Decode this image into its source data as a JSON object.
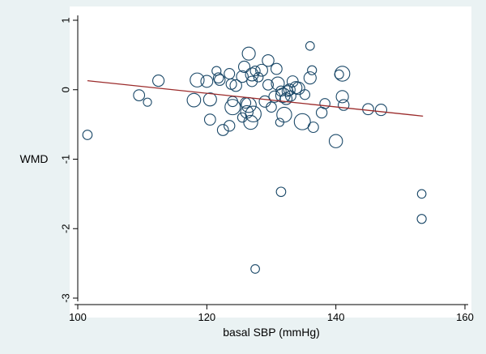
{
  "chart_data": {
    "type": "scatter",
    "title": "",
    "xlabel": "basal SBP (mmHg)",
    "ylabel": "WMD",
    "xlim": [
      100,
      160
    ],
    "ylim": [
      -3,
      1
    ],
    "x_ticks": [
      100,
      120,
      140,
      160
    ],
    "y_ticks": [
      1,
      0,
      -1,
      -2,
      -3
    ],
    "grid": false,
    "legend": "none",
    "colors": {
      "background": "#eaf2f3",
      "plot_area": "#ffffff",
      "marker_stroke": "#1a4868",
      "fit_line": "#9b2b2b"
    },
    "fit_line": {
      "x": [
        101.5,
        153.5
      ],
      "y": [
        0.13,
        -0.38
      ]
    },
    "points": [
      {
        "x": 101.5,
        "y": -0.65,
        "w": 1.0
      },
      {
        "x": 109.5,
        "y": -0.08,
        "w": 1.5
      },
      {
        "x": 110.8,
        "y": -0.18,
        "w": 0.7
      },
      {
        "x": 112.5,
        "y": 0.13,
        "w": 1.6
      },
      {
        "x": 118.0,
        "y": -0.15,
        "w": 2.4
      },
      {
        "x": 118.5,
        "y": 0.14,
        "w": 2.6
      },
      {
        "x": 120.0,
        "y": 0.12,
        "w": 1.8
      },
      {
        "x": 120.5,
        "y": -0.14,
        "w": 2.2
      },
      {
        "x": 120.5,
        "y": -0.43,
        "w": 1.5
      },
      {
        "x": 121.5,
        "y": 0.27,
        "w": 0.9
      },
      {
        "x": 121.8,
        "y": 0.17,
        "w": 1.2
      },
      {
        "x": 122.0,
        "y": 0.14,
        "w": 1.4
      },
      {
        "x": 122.5,
        "y": -0.58,
        "w": 1.5
      },
      {
        "x": 123.5,
        "y": 0.23,
        "w": 1.3
      },
      {
        "x": 123.5,
        "y": -0.52,
        "w": 1.4
      },
      {
        "x": 123.8,
        "y": 0.08,
        "w": 1.3
      },
      {
        "x": 124.0,
        "y": -0.17,
        "w": 1.2
      },
      {
        "x": 124.0,
        "y": -0.25,
        "w": 3.2
      },
      {
        "x": 124.5,
        "y": 0.06,
        "w": 1.7
      },
      {
        "x": 125.5,
        "y": 0.19,
        "w": 1.7
      },
      {
        "x": 125.5,
        "y": -0.4,
        "w": 1.0
      },
      {
        "x": 125.8,
        "y": 0.33,
        "w": 1.6
      },
      {
        "x": 126.0,
        "y": -0.19,
        "w": 1.3
      },
      {
        "x": 126.2,
        "y": -0.32,
        "w": 2.0
      },
      {
        "x": 126.5,
        "y": 0.52,
        "w": 2.2
      },
      {
        "x": 126.5,
        "y": -0.22,
        "w": 3.0
      },
      {
        "x": 126.8,
        "y": -0.47,
        "w": 2.6
      },
      {
        "x": 127.0,
        "y": 0.22,
        "w": 2.2
      },
      {
        "x": 127.0,
        "y": 0.12,
        "w": 1.3
      },
      {
        "x": 127.2,
        "y": -0.35,
        "w": 3.4
      },
      {
        "x": 127.5,
        "y": 0.27,
        "w": 1.1
      },
      {
        "x": 127.5,
        "y": -2.58,
        "w": 0.8
      },
      {
        "x": 128.0,
        "y": 0.18,
        "w": 1.0
      },
      {
        "x": 128.5,
        "y": 0.28,
        "w": 1.8
      },
      {
        "x": 129.0,
        "y": -0.17,
        "w": 1.6
      },
      {
        "x": 129.5,
        "y": 0.42,
        "w": 1.7
      },
      {
        "x": 129.5,
        "y": 0.07,
        "w": 1.3
      },
      {
        "x": 130.0,
        "y": -0.25,
        "w": 1.2
      },
      {
        "x": 130.5,
        "y": -0.1,
        "w": 1.6
      },
      {
        "x": 130.8,
        "y": 0.3,
        "w": 1.5
      },
      {
        "x": 131.0,
        "y": 0.09,
        "w": 2.2
      },
      {
        "x": 131.3,
        "y": -0.47,
        "w": 0.7
      },
      {
        "x": 131.5,
        "y": -1.47,
        "w": 1.0
      },
      {
        "x": 131.5,
        "y": -0.02,
        "w": 1.2
      },
      {
        "x": 131.8,
        "y": -0.08,
        "w": 2.8
      },
      {
        "x": 132.0,
        "y": -0.36,
        "w": 3.0
      },
      {
        "x": 132.3,
        "y": -0.13,
        "w": 1.7
      },
      {
        "x": 132.5,
        "y": -0.02,
        "w": 1.4
      },
      {
        "x": 132.8,
        "y": 0.0,
        "w": 1.6
      },
      {
        "x": 133.0,
        "y": -0.09,
        "w": 1.3
      },
      {
        "x": 133.3,
        "y": 0.12,
        "w": 1.5
      },
      {
        "x": 133.8,
        "y": 0.03,
        "w": 1.9
      },
      {
        "x": 134.2,
        "y": 0.02,
        "w": 2.0
      },
      {
        "x": 134.8,
        "y": -0.46,
        "w": 3.6
      },
      {
        "x": 135.2,
        "y": -0.07,
        "w": 1.1
      },
      {
        "x": 136.0,
        "y": 0.63,
        "w": 0.8
      },
      {
        "x": 136.0,
        "y": 0.17,
        "w": 1.9
      },
      {
        "x": 136.3,
        "y": 0.28,
        "w": 0.9
      },
      {
        "x": 136.5,
        "y": -0.54,
        "w": 1.3
      },
      {
        "x": 137.8,
        "y": -0.33,
        "w": 1.4
      },
      {
        "x": 138.3,
        "y": -0.2,
        "w": 1.2
      },
      {
        "x": 140.0,
        "y": -0.74,
        "w": 2.3
      },
      {
        "x": 140.5,
        "y": 0.22,
        "w": 0.9
      },
      {
        "x": 141.0,
        "y": 0.23,
        "w": 3.0
      },
      {
        "x": 141.0,
        "y": -0.1,
        "w": 1.9
      },
      {
        "x": 141.2,
        "y": -0.22,
        "w": 1.4
      },
      {
        "x": 145.0,
        "y": -0.28,
        "w": 1.5
      },
      {
        "x": 147.0,
        "y": -0.29,
        "w": 1.6
      },
      {
        "x": 153.3,
        "y": -1.5,
        "w": 0.8
      },
      {
        "x": 153.3,
        "y": -1.86,
        "w": 0.9
      }
    ]
  }
}
